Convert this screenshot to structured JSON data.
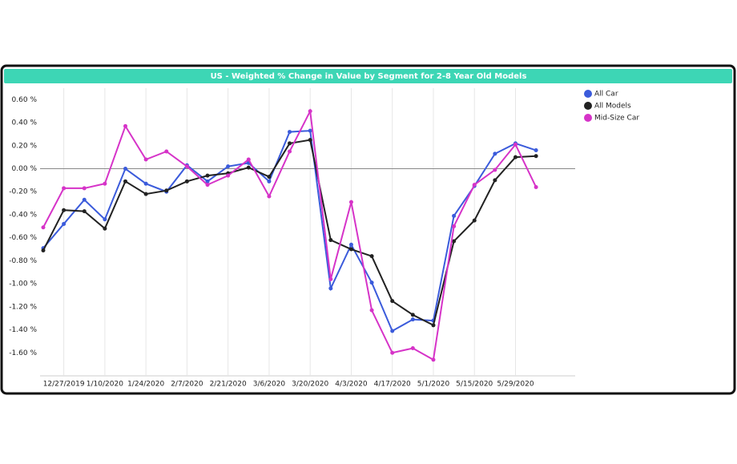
{
  "chart_data": {
    "type": "line",
    "title": "US - Weighted % Change in Value by Segment for 2-8 Year Old Models",
    "categories": [
      null,
      "12/27/2019",
      null,
      "1/10/2020",
      null,
      "1/24/2020",
      null,
      "2/7/2020",
      null,
      "2/21/2020",
      null,
      "3/6/2020",
      null,
      "3/20/2020",
      null,
      "4/3/2020",
      null,
      "4/17/2020",
      null,
      "5/1/2020",
      null,
      "5/15/2020",
      null,
      "5/29/2020",
      null
    ],
    "series": [
      {
        "name": "All Car",
        "color": "#3b5bdb",
        "values": [
          -0.69,
          -0.48,
          -0.27,
          -0.44,
          0.0,
          -0.13,
          -0.2,
          0.03,
          -0.11,
          0.02,
          0.05,
          -0.11,
          0.32,
          0.33,
          -1.04,
          -0.66,
          -0.99,
          -1.41,
          -1.31,
          -1.32,
          -0.41,
          -0.15,
          0.13,
          0.22,
          0.16
        ]
      },
      {
        "name": "All Models",
        "color": "#222222",
        "values": [
          -0.71,
          -0.36,
          -0.37,
          -0.52,
          -0.11,
          -0.22,
          -0.19,
          -0.11,
          -0.06,
          -0.04,
          0.01,
          -0.07,
          0.22,
          0.25,
          -0.62,
          -0.7,
          -0.76,
          -1.15,
          -1.27,
          -1.36,
          -0.63,
          -0.45,
          -0.1,
          0.1,
          0.11
        ]
      },
      {
        "name": "Mid-Size Car",
        "color": "#d633c8",
        "values": [
          -0.51,
          -0.17,
          -0.17,
          -0.13,
          0.37,
          0.08,
          0.15,
          0.02,
          -0.14,
          -0.06,
          0.08,
          -0.24,
          0.15,
          0.5,
          -0.96,
          -0.29,
          -1.23,
          -1.6,
          -1.56,
          -1.66,
          -0.5,
          -0.14,
          -0.01,
          0.21,
          -0.16
        ]
      }
    ],
    "ylim": [
      -1.8,
      0.7
    ],
    "yticks": [
      {
        "value": 0.6,
        "label": "0.60 %"
      },
      {
        "value": 0.4,
        "label": "0.40 %"
      },
      {
        "value": 0.2,
        "label": "0.20 %"
      },
      {
        "value": 0,
        "label": "0.00 %"
      },
      {
        "value": -0.2,
        "label": "-0.20 %"
      },
      {
        "value": -0.4,
        "label": "-0.40 %"
      },
      {
        "value": -0.6,
        "label": "-0.60 %"
      },
      {
        "value": -0.8,
        "label": "-0.80 %"
      },
      {
        "value": -1.0,
        "label": "-1.00 %"
      },
      {
        "value": -1.2,
        "label": "-1.20 %"
      },
      {
        "value": -1.4,
        "label": "-1.40 %"
      },
      {
        "value": -1.6,
        "label": "-1.60 %"
      }
    ],
    "grid": true,
    "legend": "right"
  }
}
